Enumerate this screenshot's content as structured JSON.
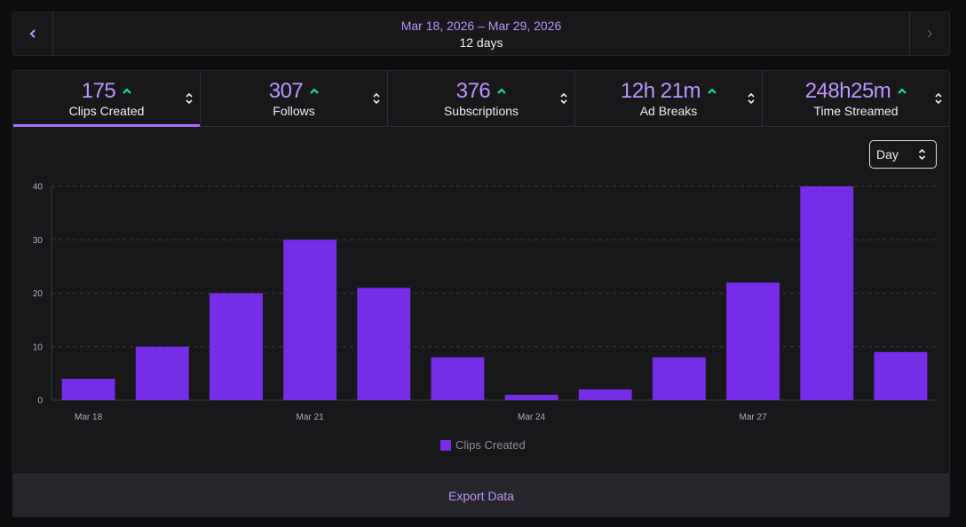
{
  "date_range": {
    "range": "Mar 18, 2026 – Mar 29, 2026",
    "days": "12 days"
  },
  "tabs": [
    {
      "value": "175",
      "label": "Clips Created",
      "active": true
    },
    {
      "value": "307",
      "label": "Follows",
      "active": false
    },
    {
      "value": "376",
      "label": "Subscriptions",
      "active": false
    },
    {
      "value": "12h 21m",
      "label": "Ad Breaks",
      "active": false
    },
    {
      "value": "248h25m",
      "label": "Time Streamed",
      "active": false
    }
  ],
  "granularity": {
    "selected": "Day"
  },
  "colors": {
    "accent": "#bf94ff",
    "bar": "#772ce8",
    "trend_up": "#00f593"
  },
  "chart_data": {
    "type": "bar",
    "title": "",
    "categories": [
      "Mar 18",
      "Mar 19",
      "Mar 20",
      "Mar 21",
      "Mar 22",
      "Mar 23",
      "Mar 24",
      "Mar 25",
      "Mar 26",
      "Mar 27",
      "Mar 28",
      "Mar 29"
    ],
    "values": [
      4,
      10,
      20,
      30,
      21,
      8,
      1,
      2,
      8,
      22,
      40,
      9
    ],
    "x_tick_labels": [
      {
        "index": 0,
        "label": "Mar 18"
      },
      {
        "index": 3,
        "label": "Mar 21"
      },
      {
        "index": 6,
        "label": "Mar 24"
      },
      {
        "index": 9,
        "label": "Mar 27"
      }
    ],
    "y_ticks": [
      0,
      10,
      20,
      30,
      40
    ],
    "ylim": [
      0,
      40
    ],
    "grid": true,
    "legend": {
      "label": "Clips Created",
      "placement": "bottom-center"
    },
    "xlabel": "",
    "ylabel": ""
  },
  "footer": {
    "export_label": "Export Data"
  }
}
